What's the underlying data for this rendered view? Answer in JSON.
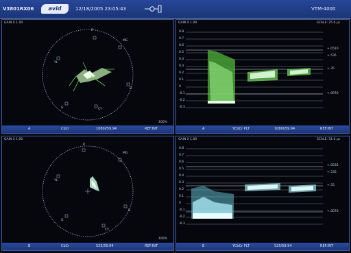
{
  "header": {
    "model": "V3801RX06",
    "logo": "avid",
    "datetime": "12/18/2005 23:05:43",
    "unit_id": "VTM-4000"
  },
  "panes": {
    "tl": {
      "gain": "GAIN X 1.00",
      "percent": "100%",
      "status": {
        "channel": "A",
        "mode": "CbCr",
        "format": "1080i/59.94",
        "ref": "REF:INT"
      },
      "targets": [
        "R",
        "MG",
        "YL",
        "B",
        "G",
        "CY"
      ]
    },
    "tr": {
      "gain": "GAIN X 1.00",
      "scale": "SCALE: 25.6 µs",
      "ticks": [
        "0.8",
        "0.7",
        "0.6",
        "0.5",
        "0.4",
        "0.3",
        "0.2",
        "0.1",
        "0",
        "-0.1",
        "-0.2",
        "-0.3"
      ],
      "markers": [
        "+.0510",
        "+.535",
        "+.35",
        "+.0970"
      ],
      "status": {
        "channel": "A",
        "mode": "YCbCr  PLT",
        "format": "1080i/59.94",
        "ref": "REF:INT"
      }
    },
    "bl": {
      "gain": "GAIN X 1.00",
      "percent": "100%",
      "status": {
        "channel": "B",
        "mode": "CbCr",
        "format": "525/59.94",
        "ref": "REF:INT"
      },
      "targets": [
        "R",
        "MG",
        "YL",
        "B",
        "G",
        "CY"
      ]
    },
    "br": {
      "gain": "GAIN X 1.00",
      "scale": "SCALE: 51.0 µs",
      "ticks": [
        "0.8",
        "0.7",
        "0.6",
        "0.5",
        "0.4",
        "0.3",
        "0.2",
        "0.1",
        "0",
        "-0.1",
        "-0.2",
        "-0.3"
      ],
      "markers": [
        "+.0535",
        "+.535",
        "+.35",
        "+.0070"
      ],
      "status": {
        "channel": "B",
        "mode": "YCbCr  PLT",
        "format": "525/59.94",
        "ref": "REF:INT"
      }
    }
  },
  "colors": {
    "trace": "#8fdc7a",
    "trace_bright": "#e8ffe8",
    "graticule": "#b8c2d6",
    "bar": "#1d3678"
  }
}
